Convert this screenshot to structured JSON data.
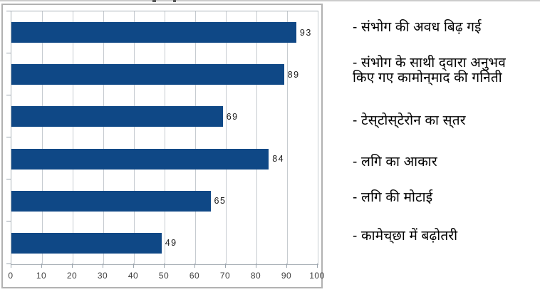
{
  "chart_data": {
    "type": "bar",
    "orientation": "horizontal",
    "title": "",
    "categories": [
      "संभोग की अवध बिढ़ गई",
      "संभोग के साथी द्‌वारा अनुभव किए गए कामोन्‌माद की गनिती",
      "टेस्‌टोस्‌टेरोन का स्‌तर",
      "लगि का आकार",
      "लगि की मोटाई",
      "कामेच्‌छा में बढ़ोतरी"
    ],
    "values": [
      93,
      89,
      69,
      84,
      65,
      49
    ],
    "xlabel": "",
    "ylabel": "",
    "xlim": [
      0,
      100
    ],
    "xticks": [
      0,
      10,
      20,
      30,
      40,
      50,
      60,
      70,
      80,
      90,
      100
    ],
    "grid": "vertical-only",
    "legend": "none",
    "value_labels": true,
    "bar_color": "#0f4886",
    "axis_color": "#9aa4ad",
    "grid_color": "#c6cbd0"
  },
  "side_labels": {
    "items": [
      {
        "text": "- संभोग की अवध बिढ़ गई"
      },
      {
        "text": "- संभोग के साथी द्‌वारा अनुभव\nकिए गए कामोन्‌माद की गनिती"
      },
      {
        "text": "- टेस्‌टोस्‌टेरोन का स्‌तर"
      },
      {
        "text": "- लगि का आकार"
      },
      {
        "text": "- लगि की मोटाई"
      },
      {
        "text": "- कामेच्‌छा में बढ़ोतरी"
      }
    ]
  }
}
